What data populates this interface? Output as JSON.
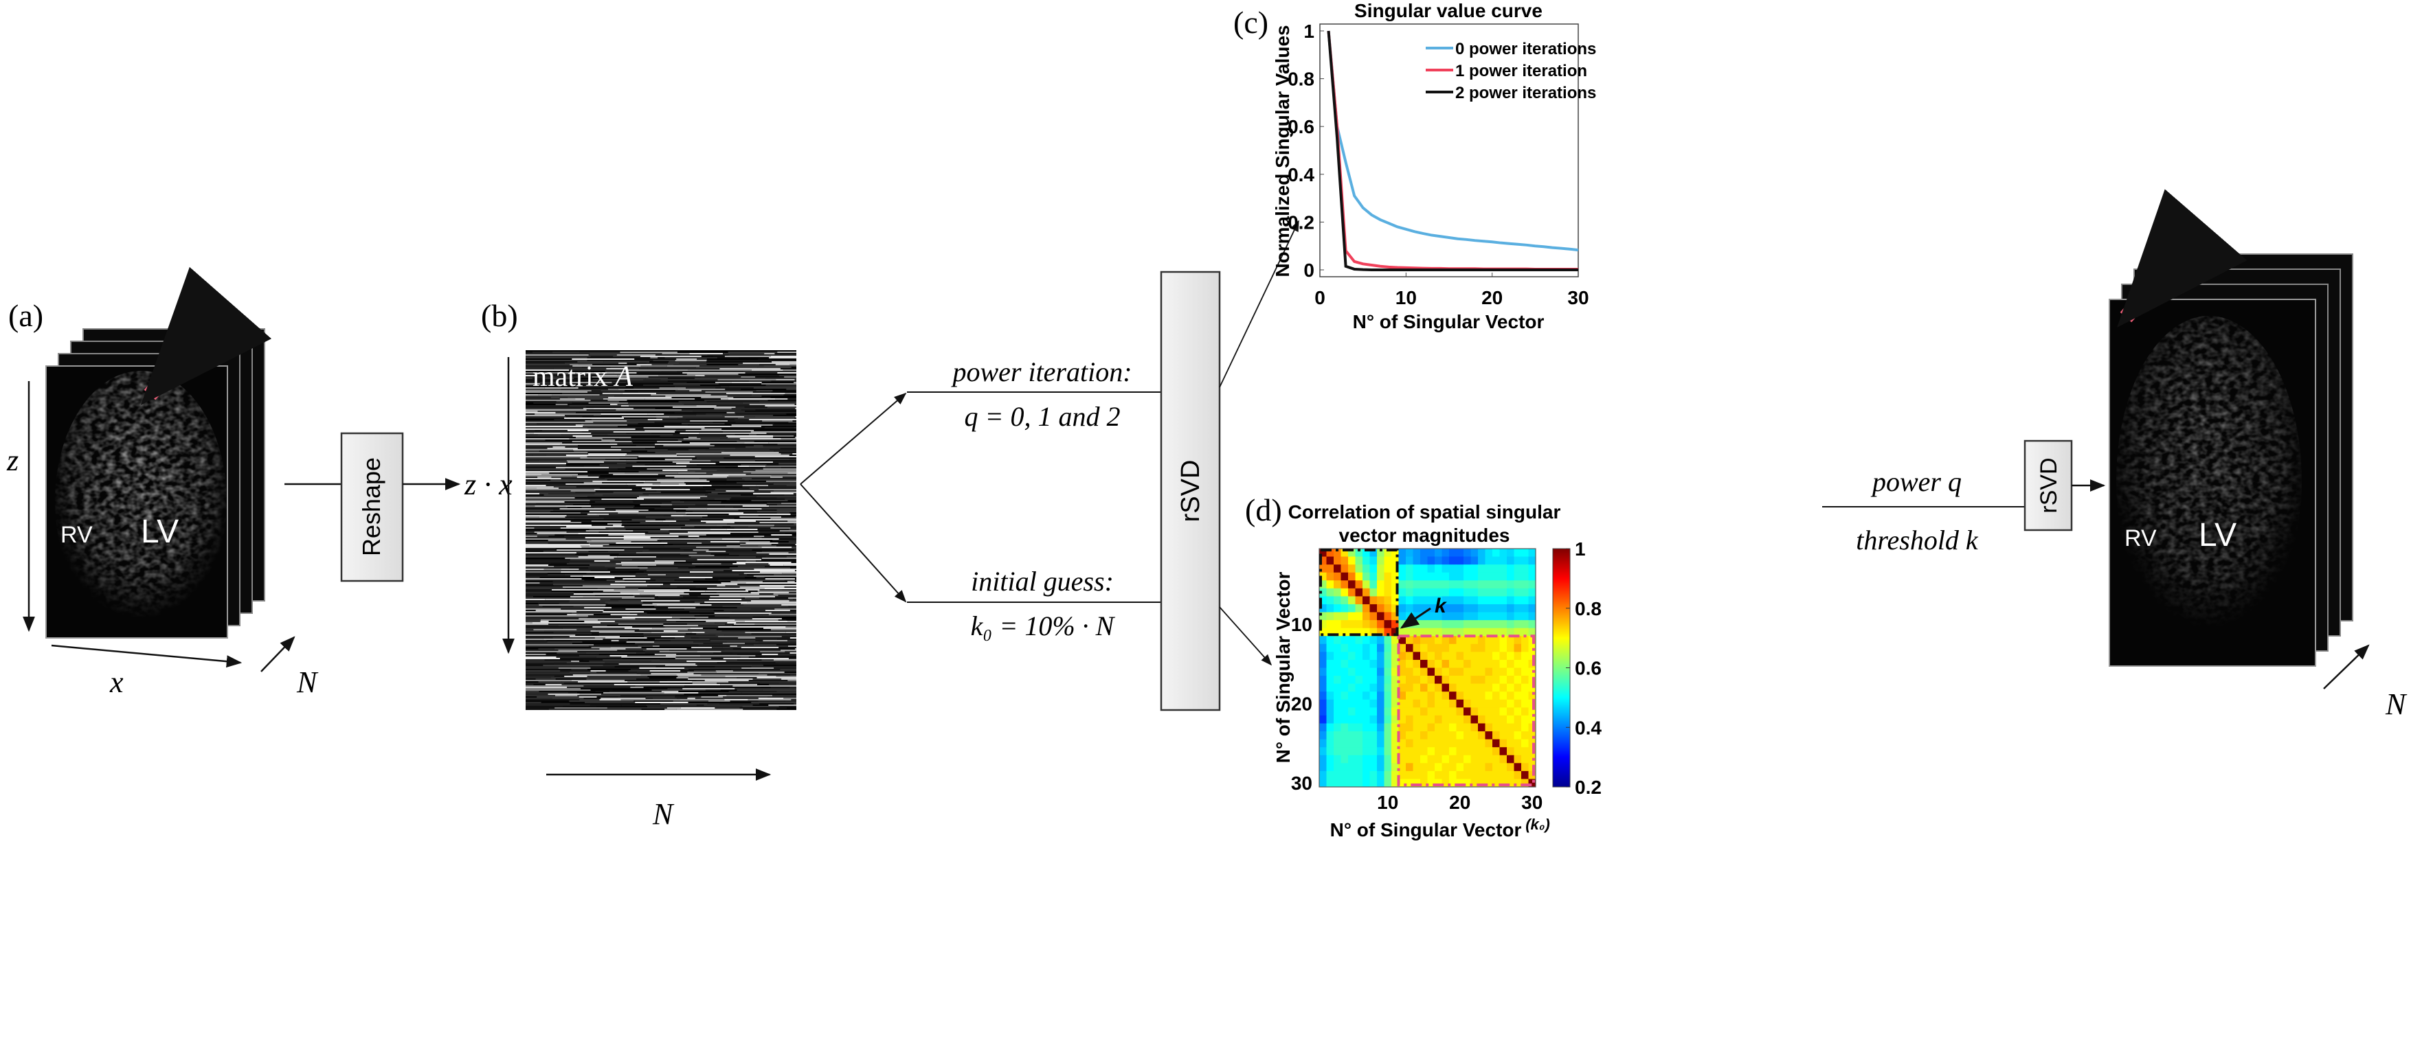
{
  "panels": {
    "a": "(a)",
    "b": "(b)",
    "c": "(c)",
    "d": "(d)"
  },
  "left_stack": {
    "z": "z",
    "x": "x",
    "N": "N",
    "rv": "RV",
    "lv": "LV"
  },
  "reshape": {
    "label": "Reshape",
    "output": "z · x"
  },
  "matrix": {
    "label": "matrix",
    "var": "A",
    "N": "N"
  },
  "branch": {
    "power_iteration": "power iteration:",
    "q_values": "q = 0, 1 and 2",
    "initial_guess": "initial guess:",
    "k0": "k₀ = 10% · N",
    "rsvd": "rSVD"
  },
  "right": {
    "power_q": "power q",
    "threshold_k": "threshold k",
    "rsvd": "rSVD",
    "rv": "RV",
    "lv": "LV",
    "N": "N"
  },
  "colors": {
    "arrow_pink": "#f2607a",
    "box_pink": "#e8508a",
    "blue": "#5aafe0",
    "red": "#f0405a",
    "black": "#111111"
  },
  "chart_data": [
    {
      "type": "line",
      "title": "Singular value curve",
      "xlabel": "N° of Singular Vector",
      "ylabel": "Normalized Singular Values",
      "xlim": [
        0,
        30
      ],
      "ylim": [
        0,
        1
      ],
      "xticks": [
        "0",
        "10",
        "20",
        "30"
      ],
      "yticks": [
        "0",
        "0.2",
        "0.4",
        "0.6",
        "0.8",
        "1"
      ],
      "legend": "top-right",
      "x": [
        1,
        2,
        3,
        4,
        5,
        6,
        7,
        8,
        9,
        10,
        11,
        12,
        13,
        14,
        15,
        16,
        17,
        18,
        19,
        20,
        21,
        22,
        23,
        24,
        25,
        26,
        27,
        28,
        29,
        30
      ],
      "series": [
        {
          "name": "0 power iterations",
          "color": "#5aafe0",
          "values": [
            1,
            0.6,
            0.45,
            0.31,
            0.26,
            0.23,
            0.21,
            0.195,
            0.18,
            0.17,
            0.16,
            0.152,
            0.145,
            0.14,
            0.135,
            0.13,
            0.127,
            0.123,
            0.12,
            0.117,
            0.113,
            0.11,
            0.107,
            0.104,
            0.1,
            0.097,
            0.093,
            0.09,
            0.087,
            0.083
          ]
        },
        {
          "name": "1 power iteration",
          "color": "#f0405a",
          "values": [
            1,
            0.6,
            0.08,
            0.035,
            0.025,
            0.02,
            0.015,
            0.012,
            0.01,
            0.009,
            0.008,
            0.007,
            0.006,
            0.006,
            0.005,
            0.005,
            0.005,
            0.005,
            0.004,
            0.004,
            0.004,
            0.004,
            0.004,
            0.004,
            0.003,
            0.003,
            0.003,
            0.003,
            0.003,
            0.003
          ]
        },
        {
          "name": "2 power iterations",
          "color": "#111111",
          "values": [
            1,
            0.55,
            0.015,
            0.003,
            0.001,
            0,
            0,
            0,
            0,
            0,
            0,
            0,
            0,
            0,
            0,
            0,
            0,
            0,
            0,
            0,
            0,
            0,
            0,
            0,
            0,
            0,
            0,
            0,
            0,
            0
          ]
        }
      ]
    },
    {
      "type": "heatmap",
      "title": "Correlation of spatial singular vector magnitudes",
      "title_lines": [
        "Correlation of spatial singular",
        "vector magnitudes"
      ],
      "xlabel": "N° of Singular Vector",
      "ylabel": "N° of Singular Vector",
      "xticks": [
        "10",
        "20",
        "30"
      ],
      "yticks": [
        "10",
        "20",
        "30"
      ],
      "x_extra_label": "(k₀)",
      "annotation": "k",
      "colormap": "jet",
      "clim": [
        0.2,
        1
      ],
      "colorbar_ticks": [
        "0.2",
        "0.4",
        "0.6",
        "0.8",
        "1"
      ],
      "matrix": [
        [
          1,
          0.82,
          0.8,
          0.72,
          0.62,
          0.55,
          0.5,
          0.45,
          0.62,
          0.68,
          0.7,
          0.42,
          0.44,
          0.42,
          0.4,
          0.4,
          0.42,
          0.4,
          0.38,
          0.38,
          0.4,
          0.42,
          0.45,
          0.48,
          0.5,
          0.48,
          0.47,
          0.5,
          0.5,
          0.48
        ],
        [
          0.82,
          1,
          0.8,
          0.78,
          0.7,
          0.6,
          0.52,
          0.48,
          0.64,
          0.7,
          0.7,
          0.42,
          0.45,
          0.42,
          0.4,
          0.38,
          0.4,
          0.38,
          0.36,
          0.36,
          0.38,
          0.4,
          0.45,
          0.48,
          0.48,
          0.48,
          0.46,
          0.48,
          0.48,
          0.46
        ],
        [
          0.8,
          0.8,
          1,
          0.8,
          0.75,
          0.62,
          0.55,
          0.5,
          0.66,
          0.7,
          0.7,
          0.5,
          0.52,
          0.5,
          0.5,
          0.48,
          0.5,
          0.48,
          0.48,
          0.48,
          0.5,
          0.5,
          0.52,
          0.52,
          0.52,
          0.52,
          0.5,
          0.52,
          0.52,
          0.5
        ],
        [
          0.72,
          0.78,
          0.8,
          1,
          0.8,
          0.7,
          0.58,
          0.52,
          0.66,
          0.72,
          0.7,
          0.5,
          0.52,
          0.5,
          0.5,
          0.5,
          0.5,
          0.5,
          0.48,
          0.48,
          0.5,
          0.5,
          0.52,
          0.52,
          0.52,
          0.52,
          0.5,
          0.52,
          0.52,
          0.5
        ],
        [
          0.62,
          0.7,
          0.75,
          0.8,
          1,
          0.8,
          0.66,
          0.55,
          0.7,
          0.72,
          0.7,
          0.55,
          0.56,
          0.55,
          0.55,
          0.55,
          0.55,
          0.55,
          0.54,
          0.54,
          0.55,
          0.55,
          0.56,
          0.56,
          0.56,
          0.56,
          0.55,
          0.56,
          0.56,
          0.55
        ],
        [
          0.55,
          0.6,
          0.62,
          0.7,
          0.8,
          1,
          0.78,
          0.62,
          0.7,
          0.72,
          0.7,
          0.52,
          0.54,
          0.52,
          0.52,
          0.52,
          0.52,
          0.52,
          0.5,
          0.5,
          0.52,
          0.52,
          0.54,
          0.54,
          0.54,
          0.54,
          0.52,
          0.54,
          0.54,
          0.52
        ],
        [
          0.5,
          0.52,
          0.55,
          0.58,
          0.66,
          0.78,
          1,
          0.78,
          0.76,
          0.74,
          0.7,
          0.48,
          0.5,
          0.48,
          0.48,
          0.48,
          0.48,
          0.46,
          0.46,
          0.46,
          0.48,
          0.48,
          0.5,
          0.5,
          0.5,
          0.5,
          0.48,
          0.5,
          0.5,
          0.48
        ],
        [
          0.45,
          0.48,
          0.5,
          0.52,
          0.55,
          0.62,
          0.78,
          1,
          0.8,
          0.76,
          0.72,
          0.44,
          0.46,
          0.44,
          0.44,
          0.44,
          0.44,
          0.42,
          0.42,
          0.42,
          0.44,
          0.44,
          0.46,
          0.46,
          0.46,
          0.46,
          0.44,
          0.46,
          0.46,
          0.44
        ],
        [
          0.62,
          0.64,
          0.66,
          0.66,
          0.7,
          0.7,
          0.76,
          0.8,
          1,
          0.82,
          0.76,
          0.46,
          0.48,
          0.46,
          0.46,
          0.46,
          0.46,
          0.44,
          0.44,
          0.44,
          0.46,
          0.46,
          0.48,
          0.48,
          0.48,
          0.48,
          0.46,
          0.48,
          0.48,
          0.46
        ],
        [
          0.68,
          0.7,
          0.7,
          0.72,
          0.72,
          0.72,
          0.74,
          0.76,
          0.82,
          1,
          0.85,
          0.6,
          0.6,
          0.6,
          0.6,
          0.6,
          0.6,
          0.58,
          0.58,
          0.58,
          0.6,
          0.6,
          0.6,
          0.6,
          0.6,
          0.6,
          0.58,
          0.6,
          0.6,
          0.58
        ],
        [
          0.7,
          0.7,
          0.7,
          0.7,
          0.7,
          0.7,
          0.7,
          0.72,
          0.76,
          0.85,
          1,
          0.66,
          0.66,
          0.66,
          0.66,
          0.66,
          0.66,
          0.64,
          0.64,
          0.64,
          0.66,
          0.66,
          0.66,
          0.66,
          0.66,
          0.66,
          0.64,
          0.66,
          0.66,
          0.64
        ],
        [
          0.45,
          0.5,
          0.52,
          0.5,
          0.5,
          0.52,
          0.5,
          0.48,
          0.45,
          0.56,
          0.68,
          1,
          0.74,
          0.76,
          0.74,
          0.74,
          0.72,
          0.74,
          0.76,
          0.72,
          0.72,
          0.72,
          0.74,
          0.72,
          0.72,
          0.7,
          0.72,
          0.74,
          0.72,
          0.7
        ],
        [
          0.42,
          0.5,
          0.5,
          0.52,
          0.5,
          0.5,
          0.48,
          0.5,
          0.42,
          0.55,
          0.66,
          0.74,
          1,
          0.74,
          0.72,
          0.74,
          0.74,
          0.74,
          0.72,
          0.72,
          0.72,
          0.74,
          0.74,
          0.72,
          0.72,
          0.7,
          0.72,
          0.76,
          0.72,
          0.7
        ],
        [
          0.4,
          0.48,
          0.5,
          0.5,
          0.52,
          0.5,
          0.48,
          0.5,
          0.44,
          0.56,
          0.66,
          0.76,
          0.74,
          1,
          0.74,
          0.72,
          0.74,
          0.72,
          0.72,
          0.74,
          0.72,
          0.72,
          0.72,
          0.72,
          0.7,
          0.72,
          0.7,
          0.72,
          0.7,
          0.7
        ],
        [
          0.4,
          0.5,
          0.5,
          0.52,
          0.5,
          0.5,
          0.5,
          0.48,
          0.44,
          0.55,
          0.66,
          0.74,
          0.72,
          0.74,
          1,
          0.74,
          0.72,
          0.76,
          0.72,
          0.72,
          0.74,
          0.72,
          0.72,
          0.72,
          0.72,
          0.7,
          0.72,
          0.7,
          0.7,
          0.72
        ],
        [
          0.42,
          0.5,
          0.5,
          0.5,
          0.52,
          0.5,
          0.5,
          0.5,
          0.42,
          0.56,
          0.68,
          0.74,
          0.74,
          0.72,
          0.74,
          1,
          0.74,
          0.72,
          0.74,
          0.74,
          0.72,
          0.72,
          0.72,
          0.74,
          0.72,
          0.72,
          0.7,
          0.72,
          0.7,
          0.7
        ],
        [
          0.4,
          0.5,
          0.52,
          0.5,
          0.5,
          0.52,
          0.5,
          0.5,
          0.44,
          0.55,
          0.66,
          0.72,
          0.74,
          0.74,
          0.72,
          0.74,
          1,
          0.74,
          0.72,
          0.72,
          0.72,
          0.74,
          0.74,
          0.72,
          0.72,
          0.7,
          0.72,
          0.7,
          0.72,
          0.7
        ],
        [
          0.4,
          0.5,
          0.5,
          0.5,
          0.52,
          0.5,
          0.5,
          0.48,
          0.44,
          0.56,
          0.66,
          0.74,
          0.74,
          0.72,
          0.76,
          0.72,
          0.74,
          1,
          0.74,
          0.72,
          0.72,
          0.72,
          0.72,
          0.72,
          0.7,
          0.72,
          0.7,
          0.72,
          0.7,
          0.7
        ],
        [
          0.38,
          0.48,
          0.5,
          0.52,
          0.5,
          0.5,
          0.48,
          0.5,
          0.42,
          0.55,
          0.66,
          0.76,
          0.72,
          0.72,
          0.72,
          0.74,
          0.72,
          0.74,
          1,
          0.74,
          0.72,
          0.72,
          0.72,
          0.7,
          0.72,
          0.7,
          0.72,
          0.7,
          0.7,
          0.72
        ],
        [
          0.36,
          0.46,
          0.5,
          0.5,
          0.5,
          0.5,
          0.5,
          0.48,
          0.42,
          0.55,
          0.66,
          0.72,
          0.72,
          0.74,
          0.72,
          0.74,
          0.72,
          0.72,
          0.74,
          1,
          0.74,
          0.72,
          0.72,
          0.72,
          0.72,
          0.72,
          0.7,
          0.72,
          0.7,
          0.7
        ],
        [
          0.36,
          0.46,
          0.5,
          0.5,
          0.52,
          0.5,
          0.5,
          0.5,
          0.42,
          0.56,
          0.68,
          0.72,
          0.72,
          0.72,
          0.74,
          0.72,
          0.72,
          0.72,
          0.72,
          0.74,
          1,
          0.74,
          0.72,
          0.72,
          0.72,
          0.7,
          0.72,
          0.7,
          0.72,
          0.7
        ],
        [
          0.34,
          0.46,
          0.5,
          0.5,
          0.5,
          0.5,
          0.5,
          0.48,
          0.42,
          0.55,
          0.66,
          0.72,
          0.74,
          0.72,
          0.72,
          0.72,
          0.74,
          0.72,
          0.72,
          0.72,
          0.74,
          1,
          0.74,
          0.72,
          0.72,
          0.72,
          0.7,
          0.72,
          0.7,
          0.7
        ],
        [
          0.4,
          0.5,
          0.52,
          0.54,
          0.52,
          0.52,
          0.5,
          0.5,
          0.44,
          0.58,
          0.68,
          0.74,
          0.74,
          0.72,
          0.72,
          0.74,
          0.72,
          0.72,
          0.7,
          0.72,
          0.72,
          0.74,
          1,
          0.74,
          0.72,
          0.72,
          0.72,
          0.72,
          0.7,
          0.72
        ],
        [
          0.42,
          0.52,
          0.54,
          0.54,
          0.54,
          0.54,
          0.52,
          0.52,
          0.46,
          0.58,
          0.68,
          0.74,
          0.72,
          0.72,
          0.74,
          0.72,
          0.72,
          0.72,
          0.72,
          0.7,
          0.72,
          0.72,
          0.74,
          1,
          0.74,
          0.72,
          0.72,
          0.7,
          0.72,
          0.72
        ],
        [
          0.44,
          0.52,
          0.54,
          0.54,
          0.54,
          0.54,
          0.52,
          0.52,
          0.46,
          0.58,
          0.68,
          0.72,
          0.74,
          0.72,
          0.72,
          0.72,
          0.72,
          0.72,
          0.72,
          0.72,
          0.72,
          0.72,
          0.72,
          0.74,
          1,
          0.74,
          0.72,
          0.72,
          0.7,
          0.72
        ],
        [
          0.46,
          0.52,
          0.54,
          0.54,
          0.54,
          0.54,
          0.52,
          0.52,
          0.48,
          0.58,
          0.68,
          0.72,
          0.72,
          0.72,
          0.72,
          0.7,
          0.72,
          0.72,
          0.7,
          0.72,
          0.72,
          0.72,
          0.72,
          0.72,
          0.74,
          1,
          0.74,
          0.72,
          0.72,
          0.72
        ],
        [
          0.44,
          0.5,
          0.52,
          0.54,
          0.52,
          0.52,
          0.5,
          0.5,
          0.46,
          0.56,
          0.68,
          0.72,
          0.72,
          0.72,
          0.7,
          0.72,
          0.72,
          0.7,
          0.72,
          0.72,
          0.7,
          0.72,
          0.72,
          0.72,
          0.72,
          0.74,
          1,
          0.74,
          0.72,
          0.72
        ],
        [
          0.44,
          0.5,
          0.52,
          0.52,
          0.52,
          0.52,
          0.5,
          0.5,
          0.46,
          0.56,
          0.66,
          0.72,
          0.76,
          0.72,
          0.72,
          0.72,
          0.7,
          0.72,
          0.72,
          0.7,
          0.72,
          0.72,
          0.72,
          0.74,
          0.72,
          0.72,
          0.74,
          1,
          0.74,
          0.72
        ],
        [
          0.46,
          0.52,
          0.52,
          0.52,
          0.52,
          0.52,
          0.5,
          0.52,
          0.48,
          0.58,
          0.68,
          0.72,
          0.72,
          0.72,
          0.72,
          0.7,
          0.72,
          0.72,
          0.7,
          0.72,
          0.72,
          0.72,
          0.72,
          0.72,
          0.72,
          0.72,
          0.72,
          0.74,
          1,
          0.74
        ],
        [
          0.46,
          0.52,
          0.52,
          0.52,
          0.52,
          0.52,
          0.5,
          0.52,
          0.48,
          0.58,
          0.68,
          0.7,
          0.7,
          0.7,
          0.72,
          0.7,
          0.7,
          0.72,
          0.7,
          0.7,
          0.7,
          0.72,
          0.72,
          0.72,
          0.72,
          0.72,
          0.72,
          0.72,
          0.74,
          1
        ]
      ],
      "k": 11,
      "k0": 30
    }
  ]
}
